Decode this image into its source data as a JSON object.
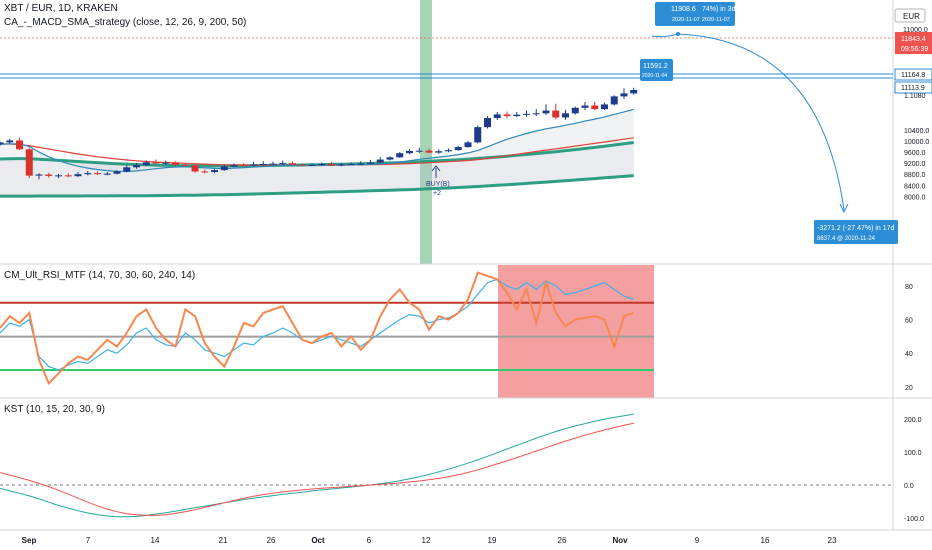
{
  "header": {
    "symbol_line": "XBT / EUR, 1D, KRAKEN",
    "strategy_line": "CA_-_MACD_SMA_strategy (close, 12, 26, 9, 200, 50)"
  },
  "currency_label": "EUR",
  "colors": {
    "up": "#1e3a8a",
    "down": "#d9322b",
    "sma_slow": "#2e9e83",
    "sma_fast": "#2e9e83",
    "fast_line": "#2196f3",
    "slow_line": "#e0413a",
    "rsi_fast": "#f5874f",
    "rsi_slow": "#3bb3e8",
    "overbought": "#c0392b",
    "oversold": "#2ecc71",
    "kst": "#26a69a",
    "kst_signal": "#ef5350",
    "callout": "#2b8dd6",
    "signal_band": "#8fc9a5",
    "hl_zone": "#f08080"
  },
  "main_axis": {
    "ticks": [
      "10400.0",
      "10000.0",
      "9600.0",
      "9200.0",
      "8800.0",
      "8400.0",
      "8000.0"
    ],
    "labels": {
      "top_partial": "11000.0",
      "price": "11843.4",
      "countdown": "09:56:39",
      "level_a": "11164.8",
      "level_b": "11113.9",
      "bottom_partial": "1.1080"
    }
  },
  "rsi_axis": {
    "ticks": [
      "80",
      "60",
      "40",
      "20"
    ]
  },
  "kst_axis": {
    "ticks": [
      "200.0",
      "100.0",
      "0.0",
      "-100.0"
    ]
  },
  "x_axis": {
    "ticks": [
      "Sep",
      "7",
      "14",
      "21",
      "26",
      "Oct",
      "6",
      "12",
      "19",
      "26",
      "Nov",
      "9",
      "16",
      "23"
    ]
  },
  "strategy_marker": {
    "label": "BUY(B)",
    "qty": "+2"
  },
  "callouts": {
    "top": {
      "price": "11908.6",
      "date": "2020-11-07",
      "pct": "74%) in 3d",
      "date2": "2020-11-07"
    },
    "mid": {
      "price": "11591.2",
      "date": "2020-11-04"
    },
    "projection": {
      "line1": "-3271.2 (-27.47%) in 17d",
      "line2": "8637.4 @ 2020-11-24"
    }
  },
  "rsi_panel": {
    "title": "CM_Ult_RSI_MTF (14, 70, 30, 60, 240, 14)"
  },
  "kst_panel": {
    "title": "KST (10, 15, 20, 30, 9)"
  },
  "chart_data": [
    {
      "type": "candlestick",
      "title": "XBT / EUR, 1D, KRAKEN",
      "x": [
        "2020-09-01",
        "2020-09-02",
        "2020-09-03",
        "2020-09-04",
        "2020-09-05",
        "2020-09-06",
        "2020-09-07",
        "2020-09-08",
        "2020-09-09",
        "2020-09-10",
        "2020-09-11",
        "2020-09-12",
        "2020-09-13",
        "2020-09-14",
        "2020-09-15",
        "2020-09-16",
        "2020-09-17",
        "2020-09-18",
        "2020-09-19",
        "2020-09-20",
        "2020-09-21",
        "2020-09-22",
        "2020-09-23",
        "2020-09-24",
        "2020-09-25",
        "2020-09-26",
        "2020-09-27",
        "2020-09-28",
        "2020-09-29",
        "2020-09-30",
        "2020-10-01",
        "2020-10-02",
        "2020-10-03",
        "2020-10-04",
        "2020-10-05",
        "2020-10-06",
        "2020-10-07",
        "2020-10-08",
        "2020-10-09",
        "2020-10-10",
        "2020-10-11",
        "2020-10-12",
        "2020-10-13",
        "2020-10-14",
        "2020-10-15",
        "2020-10-16",
        "2020-10-17",
        "2020-10-18",
        "2020-10-19",
        "2020-10-20",
        "2020-10-21",
        "2020-10-22",
        "2020-10-23",
        "2020-10-24",
        "2020-10-25",
        "2020-10-26",
        "2020-10-27",
        "2020-10-28",
        "2020-10-29",
        "2020-10-30",
        "2020-10-31",
        "2020-11-01",
        "2020-11-02",
        "2020-11-03",
        "2020-11-04",
        "2020-11-05"
      ],
      "open": [
        9880,
        9950,
        10020,
        9700,
        8750,
        8790,
        8740,
        8760,
        8730,
        8800,
        8840,
        8810,
        8820,
        8900,
        9050,
        9130,
        9230,
        9210,
        9220,
        9140,
        9120,
        8900,
        8880,
        8950,
        9080,
        9130,
        9120,
        9150,
        9170,
        9180,
        9200,
        9150,
        9130,
        9140,
        9170,
        9120,
        9150,
        9160,
        9180,
        9220,
        9330,
        9410,
        9560,
        9640,
        9650,
        9580,
        9630,
        9670,
        9780,
        9950,
        10500,
        10830,
        10960,
        10900,
        10950,
        10980,
        11000,
        11100,
        10850,
        11000,
        11200,
        11280,
        11150,
        11320,
        11610,
        11720
      ],
      "high": [
        9980,
        10080,
        10120,
        9760,
        8840,
        8850,
        8810,
        8830,
        8880,
        8920,
        8900,
        8880,
        8950,
        9120,
        9200,
        9300,
        9330,
        9290,
        9260,
        9200,
        9160,
        8970,
        8980,
        9150,
        9190,
        9200,
        9240,
        9270,
        9260,
        9290,
        9260,
        9200,
        9190,
        9220,
        9240,
        9210,
        9230,
        9270,
        9320,
        9420,
        9450,
        9600,
        9710,
        9760,
        9720,
        9700,
        9730,
        9830,
        10010,
        10560,
        10900,
        11050,
        11060,
        11050,
        11100,
        11150,
        11320,
        11350,
        11130,
        11240,
        11410,
        11420,
        11390,
        11650,
        11900,
        11920
      ],
      "low": [
        9830,
        9900,
        9680,
        8660,
        8620,
        8680,
        8660,
        8690,
        8700,
        8760,
        8770,
        8760,
        8790,
        8870,
        9000,
        9090,
        9170,
        9140,
        9100,
        9080,
        8860,
        8830,
        8840,
        8920,
        9060,
        9090,
        9090,
        9110,
        9120,
        9140,
        9120,
        9110,
        9100,
        9110,
        9100,
        9090,
        9120,
        9130,
        9150,
        9200,
        9300,
        9390,
        9520,
        9560,
        9560,
        9540,
        9590,
        9650,
        9760,
        9910,
        10450,
        10760,
        10830,
        10860,
        10880,
        10900,
        10940,
        10780,
        10770,
        10950,
        11120,
        11110,
        11120,
        11280,
        11520,
        11670
      ],
      "close": [
        9950,
        10020,
        9700,
        8750,
        8790,
        8740,
        8760,
        8730,
        8800,
        8840,
        8810,
        8820,
        8900,
        9050,
        9130,
        9230,
        9210,
        9220,
        9140,
        9120,
        8900,
        8880,
        8950,
        9080,
        9130,
        9120,
        9150,
        9170,
        9180,
        9200,
        9150,
        9130,
        9140,
        9170,
        9120,
        9150,
        9160,
        9180,
        9220,
        9330,
        9410,
        9560,
        9640,
        9650,
        9580,
        9630,
        9670,
        9780,
        9950,
        10500,
        10830,
        10960,
        10900,
        10950,
        10980,
        11000,
        11100,
        10850,
        11000,
        11200,
        11280,
        11150,
        11320,
        11610,
        11720,
        11843.4
      ],
      "series": [
        {
          "name": "SMA 200",
          "values": [
            8010,
            8011,
            8012,
            8012,
            8013,
            8013,
            8014,
            8015,
            8016,
            8017,
            8018,
            8019,
            8020,
            8021,
            8023,
            8025,
            8028,
            8031,
            8035,
            8040,
            8045,
            8051,
            8057,
            8063,
            8070,
            8078,
            8086,
            8095,
            8104,
            8113,
            8122,
            8131,
            8141,
            8151,
            8161,
            8171,
            8181,
            8191,
            8202,
            8213,
            8224,
            8235,
            8247,
            8260,
            8274,
            8289,
            8305,
            8322,
            8340,
            8359,
            8379,
            8400,
            8422,
            8445,
            8468,
            8491,
            8515,
            8540,
            8566,
            8592,
            8618,
            8644,
            8670,
            8696,
            8722,
            8750
          ]
        },
        {
          "name": "SMA 50",
          "values": [
            9350,
            9360,
            9365,
            9360,
            9340,
            9320,
            9300,
            9280,
            9260,
            9240,
            9220,
            9200,
            9180,
            9165,
            9150,
            9140,
            9130,
            9122,
            9115,
            9110,
            9106,
            9103,
            9102,
            9103,
            9105,
            9108,
            9112,
            9116,
            9120,
            9125,
            9130,
            9135,
            9141,
            9148,
            9155,
            9162,
            9170,
            9179,
            9188,
            9198,
            9210,
            9222,
            9236,
            9251,
            9267,
            9285,
            9304,
            9325,
            9347,
            9371,
            9397,
            9424,
            9452,
            9482,
            9513,
            9546,
            9580,
            9615,
            9652,
            9690,
            9730,
            9770,
            9812,
            9855,
            9900,
            9945
          ]
        },
        {
          "name": "fast",
          "values": [
            9880,
            9895,
            9900,
            9800,
            9600,
            9430,
            9290,
            9180,
            9090,
            9020,
            8970,
            8930,
            8905,
            8900,
            8920,
            8960,
            9000,
            9040,
            9060,
            9070,
            9050,
            9030,
            9010,
            9005,
            9020,
            9040,
            9060,
            9080,
            9100,
            9115,
            9125,
            9128,
            9130,
            9135,
            9135,
            9138,
            9140,
            9145,
            9155,
            9170,
            9200,
            9240,
            9290,
            9340,
            9380,
            9420,
            9460,
            9510,
            9570,
            9660,
            9790,
            9930,
            10060,
            10170,
            10270,
            10360,
            10440,
            10500,
            10570,
            10640,
            10720,
            10790,
            10870,
            10960,
            11050,
            11140
          ]
        },
        {
          "name": "slow",
          "values": [
            9900,
            9890,
            9870,
            9830,
            9770,
            9710,
            9650,
            9590,
            9530,
            9480,
            9430,
            9390,
            9350,
            9315,
            9285,
            9260,
            9240,
            9225,
            9210,
            9195,
            9180,
            9165,
            9150,
            9140,
            9135,
            9130,
            9128,
            9126,
            9125,
            9125,
            9125,
            9125,
            9126,
            9128,
            9130,
            9133,
            9136,
            9140,
            9145,
            9152,
            9160,
            9170,
            9183,
            9198,
            9215,
            9233,
            9252,
            9273,
            9297,
            9330,
            9370,
            9420,
            9470,
            9520,
            9570,
            9620,
            9670,
            9715,
            9765,
            9815,
            9865,
            9915,
            9965,
            10015,
            10065,
            10115
          ]
        }
      ],
      "ylim": [
        7900,
        12150
      ]
    },
    {
      "type": "line",
      "title": "CM_Ult_RSI_MTF (14, 70, 30, 60, 240, 14)",
      "series": [
        {
          "values": [
            52,
            58,
            56,
            60,
            38,
            32,
            30,
            33,
            35,
            34,
            38,
            42,
            40,
            45,
            52,
            55,
            48,
            45,
            44,
            52,
            48,
            42,
            40,
            38,
            42,
            46,
            45,
            50,
            52,
            55,
            52,
            48,
            46,
            48,
            50,
            48,
            46,
            44,
            48,
            52,
            56,
            60,
            63,
            62,
            58,
            60,
            61,
            64,
            68,
            75,
            82,
            84,
            80,
            78,
            82,
            78,
            83,
            80,
            75,
            76,
            78,
            80,
            82,
            78,
            74,
            72
          ]
        },
        {
          "values": [
            55,
            62,
            58,
            64,
            36,
            22,
            28,
            34,
            38,
            36,
            42,
            48,
            44,
            52,
            62,
            66,
            55,
            48,
            44,
            66,
            62,
            46,
            38,
            32,
            44,
            58,
            56,
            64,
            66,
            68,
            58,
            48,
            46,
            50,
            52,
            44,
            50,
            42,
            48,
            62,
            72,
            78,
            70,
            66,
            54,
            62,
            60,
            64,
            72,
            88,
            86,
            84,
            76,
            66,
            78,
            58,
            82,
            64,
            56,
            60,
            61,
            62,
            60,
            44,
            62,
            64
          ]
        }
      ],
      "ylim": [
        15,
        90
      ],
      "levels": [
        70,
        60,
        30
      ]
    },
    {
      "type": "line",
      "title": "KST (10, 15, 20, 30, 9)",
      "series": [
        {
          "values": [
            -10,
            -18,
            -25,
            -33,
            -42,
            -52,
            -62,
            -70,
            -78,
            -85,
            -90,
            -94,
            -96,
            -96,
            -95,
            -92,
            -88,
            -84,
            -79,
            -74,
            -69,
            -64,
            -59,
            -54,
            -49,
            -44,
            -40,
            -36,
            -32,
            -28,
            -25,
            -22,
            -18,
            -15,
            -12,
            -9,
            -6,
            -3,
            0,
            4,
            8,
            13,
            19,
            25,
            32,
            40,
            48,
            57,
            66,
            76,
            87,
            98,
            109,
            120,
            131,
            142,
            152,
            162,
            171,
            179,
            186,
            193,
            199,
            205,
            210,
            215
          ]
        },
        {
          "values": [
            38,
            30,
            22,
            14,
            5,
            -5,
            -16,
            -28,
            -40,
            -52,
            -63,
            -73,
            -81,
            -87,
            -90,
            -92,
            -92,
            -90,
            -86,
            -81,
            -75,
            -68,
            -61,
            -54,
            -47,
            -40,
            -34,
            -29,
            -25,
            -21,
            -18,
            -15,
            -12,
            -10,
            -8,
            -6,
            -4,
            -2,
            0,
            2,
            4,
            6,
            9,
            12,
            16,
            20,
            25,
            31,
            38,
            46,
            55,
            64,
            73,
            83,
            93,
            103,
            113,
            123,
            133,
            142,
            151,
            159,
            167,
            174,
            181,
            187
          ]
        }
      ],
      "ylim": [
        -120,
        240
      ]
    }
  ]
}
